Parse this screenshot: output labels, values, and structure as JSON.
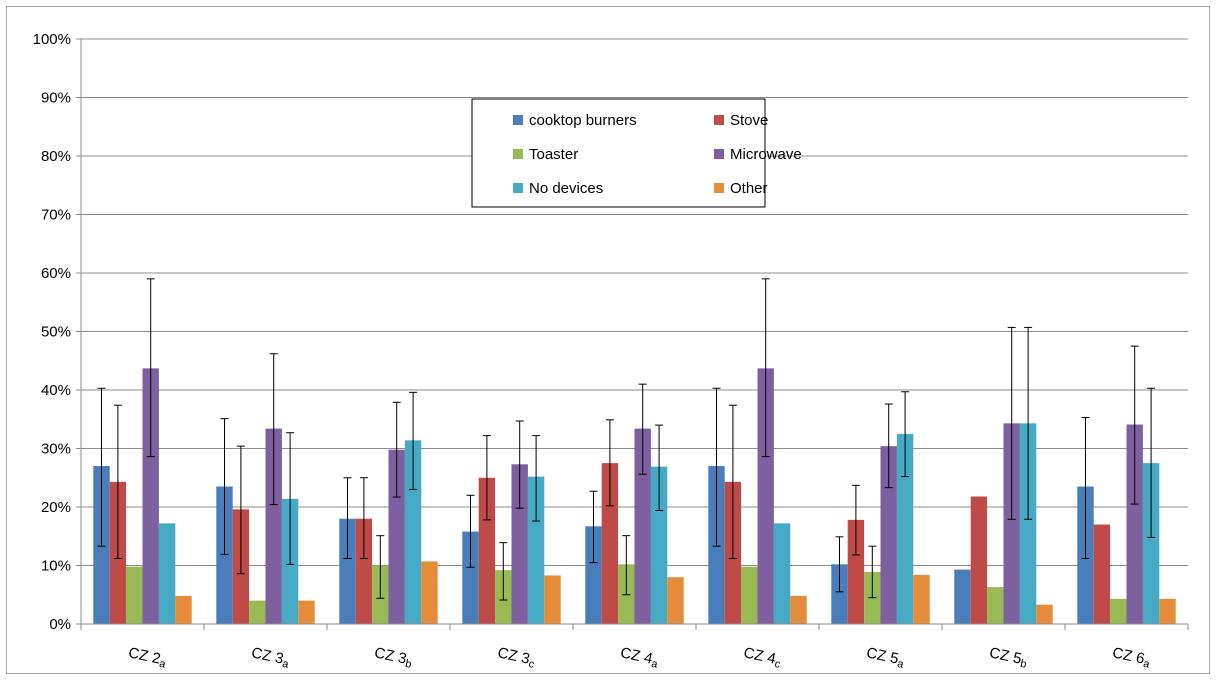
{
  "chart_data": {
    "type": "bar",
    "title": "",
    "xlabel": "",
    "ylabel": "",
    "ylim": [
      0,
      100
    ],
    "yticks": [
      "0%",
      "10%",
      "20%",
      "30%",
      "40%",
      "50%",
      "60%",
      "70%",
      "80%",
      "90%",
      "100%"
    ],
    "grid": true,
    "legend_placement": "top-center",
    "categories": [
      {
        "main": "CZ 2",
        "sub": "a"
      },
      {
        "main": "CZ 3",
        "sub": "a"
      },
      {
        "main": "CZ 3",
        "sub": "b"
      },
      {
        "main": "CZ 3",
        "sub": "c"
      },
      {
        "main": "CZ 4",
        "sub": "a"
      },
      {
        "main": "CZ 4",
        "sub": "c"
      },
      {
        "main": "CZ 5",
        "sub": "a"
      },
      {
        "main": "CZ 5",
        "sub": "b"
      },
      {
        "main": "CZ 6",
        "sub": "a"
      }
    ],
    "series": [
      {
        "name": "cooktop burners",
        "color": "#4a7ebb",
        "values": [
          27,
          23.5,
          18,
          15.8,
          16.7,
          27,
          10.2,
          9.3,
          23.5
        ],
        "err_low": [
          13.3,
          11.9,
          11.2,
          9.7,
          10.5,
          13.3,
          5.5,
          null,
          11.2
        ],
        "err_high": [
          40.3,
          35.1,
          25,
          22,
          22.7,
          40.3,
          14.9,
          null,
          35.3
        ]
      },
      {
        "name": "Stove",
        "color": "#be4b48",
        "values": [
          24.3,
          19.6,
          18,
          25,
          27.5,
          24.3,
          17.8,
          21.8,
          17
        ],
        "err_low": [
          11.2,
          8.6,
          11.2,
          17.8,
          20.2,
          11.2,
          11.8,
          null,
          null
        ],
        "err_high": [
          37.4,
          30.4,
          25,
          32.2,
          34.9,
          37.4,
          23.7,
          null,
          null
        ]
      },
      {
        "name": "Toaster",
        "color": "#98b954",
        "values": [
          9.8,
          4,
          10,
          9.2,
          10.2,
          9.8,
          8.9,
          6.3,
          4.3
        ],
        "err_low": [
          null,
          null,
          4.4,
          4.1,
          5,
          null,
          4.5,
          null,
          null
        ],
        "err_high": [
          null,
          null,
          15.1,
          13.9,
          15.1,
          null,
          13.3,
          null,
          null
        ]
      },
      {
        "name": "Microwave",
        "color": "#7d60a0",
        "values": [
          43.7,
          33.4,
          29.8,
          27.3,
          33.4,
          43.7,
          30.4,
          34.3,
          34.1
        ],
        "err_low": [
          28.6,
          20.4,
          21.7,
          19.8,
          25.6,
          28.6,
          23.3,
          17.9,
          20.5
        ],
        "err_high": [
          59,
          46.2,
          37.9,
          34.7,
          41,
          59,
          37.6,
          50.7,
          47.5
        ]
      },
      {
        "name": "No devices",
        "color": "#46aac5",
        "values": [
          17.2,
          21.4,
          31.4,
          25.2,
          26.9,
          17.2,
          32.5,
          34.3,
          27.5
        ],
        "err_low": [
          null,
          10.2,
          23,
          17.6,
          19.4,
          null,
          25.2,
          17.9,
          14.8
        ],
        "err_high": [
          null,
          32.7,
          39.6,
          32.2,
          34,
          null,
          39.7,
          50.7,
          40.3
        ]
      },
      {
        "name": "Other",
        "color": "#e58c3b",
        "values": [
          4.8,
          4,
          10.7,
          8.3,
          8,
          4.8,
          8.4,
          3.3,
          4.3
        ],
        "err_low": [
          null,
          null,
          null,
          null,
          null,
          null,
          null,
          null,
          null
        ],
        "err_high": [
          null,
          null,
          null,
          null,
          null,
          null,
          null,
          null,
          null
        ]
      }
    ]
  }
}
